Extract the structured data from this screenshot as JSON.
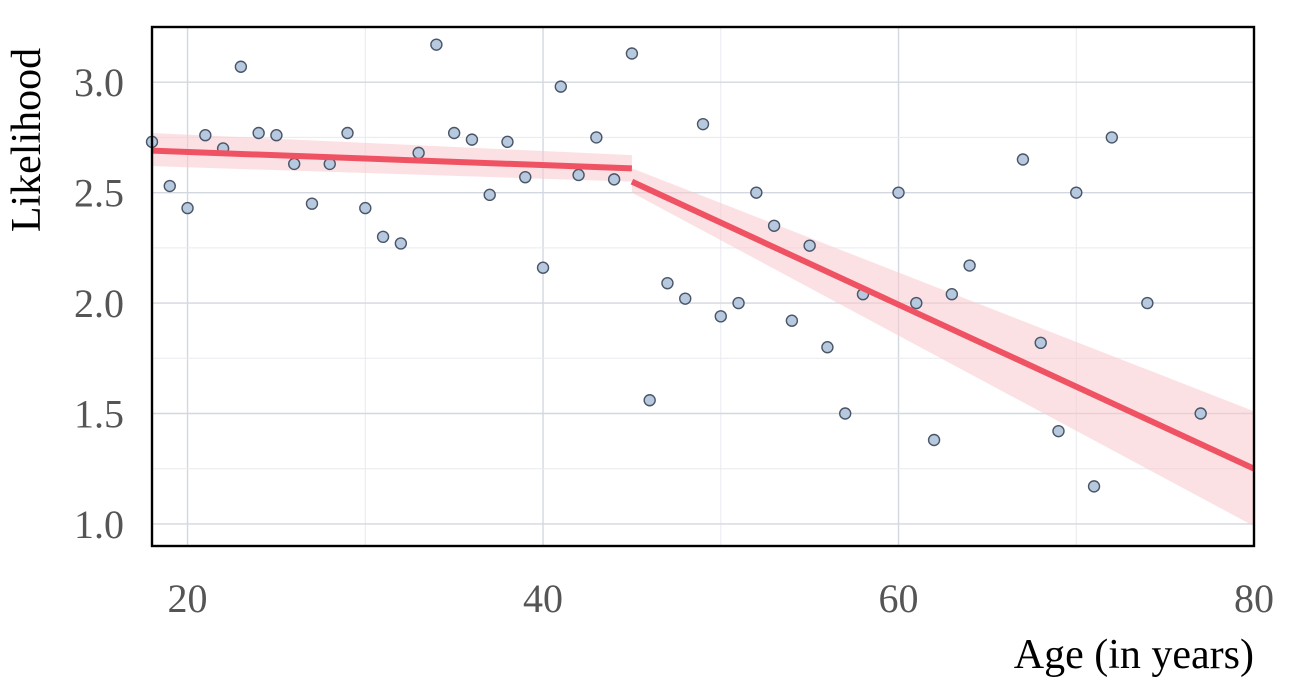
{
  "chart_data": {
    "type": "scatter",
    "xlabel": "Age (in years)",
    "ylabel": "Likelihood",
    "xlim": [
      18,
      80
    ],
    "ylim": [
      0.9,
      3.25
    ],
    "x_ticks": [
      20,
      40,
      60,
      80
    ],
    "y_ticks": [
      1.0,
      1.5,
      2.0,
      2.5,
      3.0
    ],
    "x_tick_labels": [
      "20",
      "40",
      "60",
      "80"
    ],
    "y_tick_labels": [
      "1.0",
      "1.5",
      "2.0",
      "2.5",
      "3.0"
    ],
    "grid": true,
    "colors": {
      "points": "#b7c9de",
      "point_edge": "#4a5568",
      "trend": "#ef5363",
      "band": "#f9c9cd"
    },
    "points": [
      {
        "x": 18,
        "y": 2.73
      },
      {
        "x": 19,
        "y": 2.53
      },
      {
        "x": 20,
        "y": 2.43
      },
      {
        "x": 21,
        "y": 2.76
      },
      {
        "x": 22,
        "y": 2.7
      },
      {
        "x": 23,
        "y": 3.07
      },
      {
        "x": 24,
        "y": 2.77
      },
      {
        "x": 25,
        "y": 2.76
      },
      {
        "x": 26,
        "y": 2.63
      },
      {
        "x": 27,
        "y": 2.45
      },
      {
        "x": 28,
        "y": 2.63
      },
      {
        "x": 29,
        "y": 2.77
      },
      {
        "x": 30,
        "y": 2.43
      },
      {
        "x": 31,
        "y": 2.3
      },
      {
        "x": 32,
        "y": 2.27
      },
      {
        "x": 33,
        "y": 2.68
      },
      {
        "x": 34,
        "y": 3.17
      },
      {
        "x": 35,
        "y": 2.77
      },
      {
        "x": 36,
        "y": 2.74
      },
      {
        "x": 37,
        "y": 2.49
      },
      {
        "x": 38,
        "y": 2.73
      },
      {
        "x": 39,
        "y": 2.57
      },
      {
        "x": 40,
        "y": 2.16
      },
      {
        "x": 41,
        "y": 2.98
      },
      {
        "x": 42,
        "y": 2.58
      },
      {
        "x": 43,
        "y": 2.75
      },
      {
        "x": 44,
        "y": 2.56
      },
      {
        "x": 45,
        "y": 3.13
      },
      {
        "x": 46,
        "y": 1.56
      },
      {
        "x": 47,
        "y": 2.09
      },
      {
        "x": 48,
        "y": 2.02
      },
      {
        "x": 49,
        "y": 2.81
      },
      {
        "x": 50,
        "y": 1.94
      },
      {
        "x": 51,
        "y": 2.0
      },
      {
        "x": 52,
        "y": 2.5
      },
      {
        "x": 53,
        "y": 2.35
      },
      {
        "x": 54,
        "y": 1.92
      },
      {
        "x": 55,
        "y": 2.26
      },
      {
        "x": 56,
        "y": 1.8
      },
      {
        "x": 57,
        "y": 1.5
      },
      {
        "x": 58,
        "y": 2.04
      },
      {
        "x": 60,
        "y": 2.5
      },
      {
        "x": 61,
        "y": 2.0
      },
      {
        "x": 62,
        "y": 1.38
      },
      {
        "x": 63,
        "y": 2.04
      },
      {
        "x": 64,
        "y": 2.17
      },
      {
        "x": 67,
        "y": 2.65
      },
      {
        "x": 68,
        "y": 1.82
      },
      {
        "x": 69,
        "y": 1.42
      },
      {
        "x": 70,
        "y": 2.5
      },
      {
        "x": 71,
        "y": 1.17
      },
      {
        "x": 72,
        "y": 2.75
      },
      {
        "x": 74,
        "y": 2.0
      },
      {
        "x": 77,
        "y": 1.5
      }
    ],
    "trend_segments": [
      {
        "x": [
          18,
          45
        ],
        "y": [
          2.69,
          2.61
        ],
        "ci_low": [
          2.62,
          2.55
        ],
        "ci_high": [
          2.77,
          2.67
        ]
      },
      {
        "x": [
          45,
          80
        ],
        "y": [
          2.55,
          1.25
        ],
        "ci_low": [
          2.5,
          0.99
        ],
        "ci_high": [
          2.61,
          1.51
        ]
      }
    ]
  }
}
